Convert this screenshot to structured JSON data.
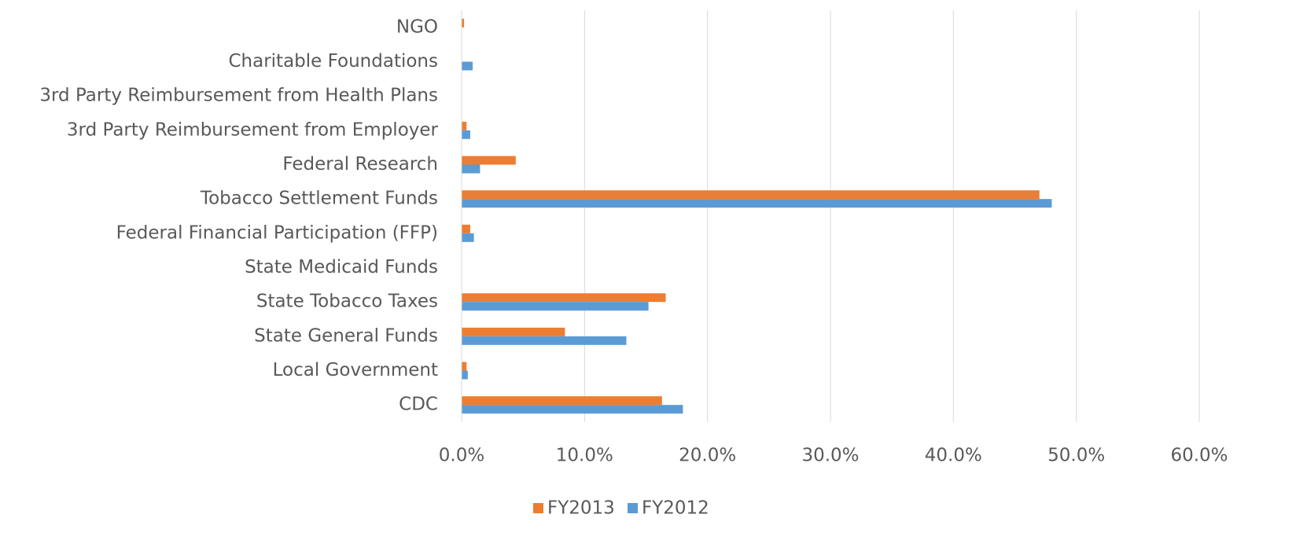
{
  "chart_data": {
    "type": "bar",
    "orientation": "horizontal",
    "categories": [
      "NGO",
      "Charitable Foundations",
      "3rd Party Reimbursement from Health Plans",
      "3rd Party Reimbursement from Employer",
      "Federal Research",
      "Tobacco Settlement Funds",
      "Federal Financial Participation (FFP)",
      "State Medicaid Funds",
      "State Tobacco Taxes",
      "State General Funds",
      "Local Government",
      "CDC"
    ],
    "series": [
      {
        "name": "FY2013",
        "color": "#ed7d31",
        "values": [
          0.2,
          0,
          0,
          0.4,
          4.4,
          47.0,
          0.7,
          0,
          16.6,
          8.4,
          0.4,
          16.3
        ]
      },
      {
        "name": "FY2012",
        "color": "#5b9bd5",
        "values": [
          0,
          0.9,
          0,
          0.7,
          1.5,
          48.0,
          1.0,
          0,
          15.2,
          13.4,
          0.5,
          18.0
        ]
      }
    ],
    "xlim": [
      0,
      60
    ],
    "xticks": [
      {
        "value": 0,
        "label": "0.0%"
      },
      {
        "value": 10,
        "label": "10.0%"
      },
      {
        "value": 20,
        "label": "20.0%"
      },
      {
        "value": 30,
        "label": "30.0%"
      },
      {
        "value": 40,
        "label": "40.0%"
      },
      {
        "value": 50,
        "label": "50.0%"
      },
      {
        "value": 60,
        "label": "60.0%"
      }
    ],
    "grid": true,
    "legend": "bottom"
  }
}
